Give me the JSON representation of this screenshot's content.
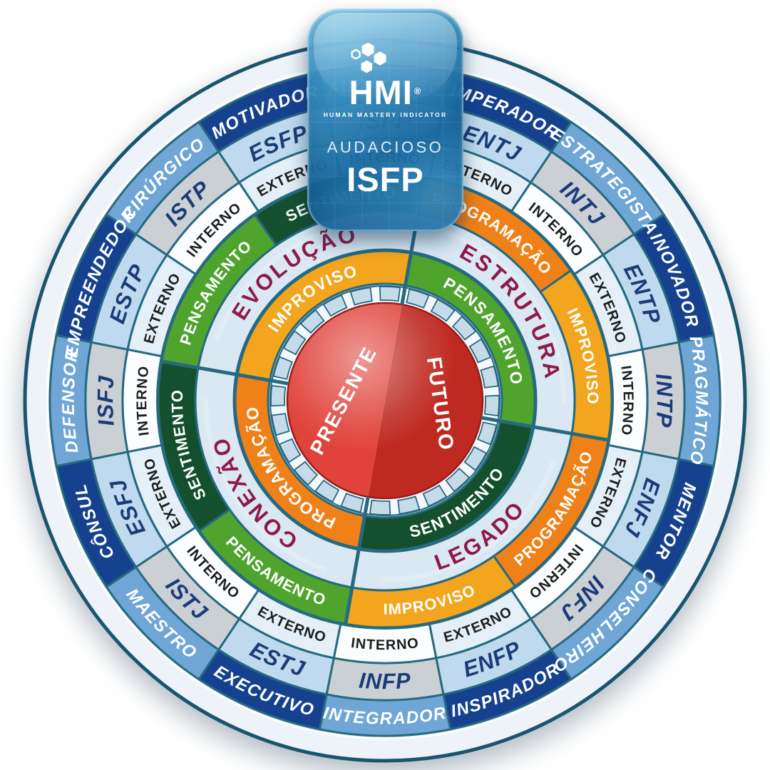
{
  "badge": {
    "logo": "HMI",
    "registered": "®",
    "logo_subtitle": "HUMAN MASTERY INDICATOR",
    "type_label": "AUDACIOSO",
    "type_code": "ISFP"
  },
  "wheel": {
    "center": {
      "left_label": "PRESENTE",
      "right_label": "FUTURO"
    },
    "inner_ring": [
      {
        "label": "PENSAMENTO",
        "quadrant": "top-right",
        "color_key": "light_green"
      },
      {
        "label": "SENTIMENTO",
        "quadrant": "bottom-right",
        "color_key": "dark_green"
      },
      {
        "label": "PROGRAMAÇÃO",
        "quadrant": "bottom-left",
        "color_key": "orange"
      },
      {
        "label": "IMPROVISO",
        "quadrant": "top-left",
        "color_key": "gold"
      }
    ],
    "quadrant_titles": [
      {
        "label": "ESTRUTURA",
        "quadrant": "top-right"
      },
      {
        "label": "LEGADO",
        "quadrant": "bottom-right"
      },
      {
        "label": "CONEXÃO",
        "quadrant": "bottom-left"
      },
      {
        "label": "EVOLUÇÃO",
        "quadrant": "top-left"
      }
    ],
    "middle_ring": [
      {
        "label": "PROGRAMAÇÃO",
        "color_key": "orange"
      },
      {
        "label": "IMPROVISO",
        "color_key": "gold"
      },
      {
        "label": "PROGRAMAÇÃO",
        "color_key": "orange"
      },
      {
        "label": "IMPROVISO",
        "color_key": "gold"
      },
      {
        "label": "PENSAMENTO",
        "color_key": "light_green"
      },
      {
        "label": "SENTIMENTO",
        "color_key": "dark_green"
      },
      {
        "label": "PENSAMENTO",
        "color_key": "light_green"
      },
      {
        "label": "SENTIMENTO",
        "color_key": "dark_green"
      }
    ],
    "types": [
      {
        "code": "ISFP",
        "descriptor": "AUDACIOSO",
        "attitude": "INTERNO",
        "covered_by_badge": true
      },
      {
        "code": "ENTJ",
        "descriptor": "IMPERADOR",
        "attitude": "EXTERNO"
      },
      {
        "code": "INTJ",
        "descriptor": "ESTRATEGISTA",
        "attitude": "INTERNO"
      },
      {
        "code": "ENTP",
        "descriptor": "INOVADOR",
        "attitude": "EXTERNO"
      },
      {
        "code": "INTP",
        "descriptor": "PRAGMÁTICO",
        "attitude": "INTERNO"
      },
      {
        "code": "ENFJ",
        "descriptor": "MENTOR",
        "attitude": "EXTERNO"
      },
      {
        "code": "INFJ",
        "descriptor": "CONSELHEIRO",
        "attitude": "INTERNO"
      },
      {
        "code": "ENFP",
        "descriptor": "INSPIRADOR",
        "attitude": "EXTERNO"
      },
      {
        "code": "INFP",
        "descriptor": "INTEGRADOR",
        "attitude": "INTERNO"
      },
      {
        "code": "ESTJ",
        "descriptor": "EXECUTIVO",
        "attitude": "EXTERNO"
      },
      {
        "code": "ISTJ",
        "descriptor": "MAESTRO",
        "attitude": "INTERNO"
      },
      {
        "code": "ESFJ",
        "descriptor": "CÔNSUL",
        "attitude": "EXTERNO"
      },
      {
        "code": "ISFJ",
        "descriptor": "DEFENSOR",
        "attitude": "INTERNO"
      },
      {
        "code": "ESTP",
        "descriptor": "EMPREENDEDOR",
        "attitude": "EXTERNO"
      },
      {
        "code": "ISTP",
        "descriptor": "CIRÚRGICO",
        "attitude": "INTERNO"
      },
      {
        "code": "ESFP",
        "descriptor": "MOTIVADOR",
        "attitude": "EXTERNO"
      }
    ],
    "colors": {
      "navy": "#16418F",
      "steel": "#6FA6D6",
      "type_external_bg": "#BFDAEE",
      "type_internal_bg": "#CBD0D5",
      "attitude_external_bg": "#E4EFF7",
      "attitude_internal_bg": "#FBFDFF",
      "orange": "#F08119",
      "gold": "#F2A51D",
      "light_green": "#4FA42E",
      "dark_green": "#14502E",
      "title_ring_bg": "#D9E8F3",
      "title_text": "#8E1A47",
      "red_left": "#E0433B",
      "red_right": "#BE2A22",
      "teal_border": "#266A80",
      "outer_stroke": "#1A5570",
      "rim": "#EDF3F8",
      "inner_bg": "#E9F1F8",
      "tick_cell": "#C6DBEA",
      "tick_bg": "#F3F8FC",
      "type_text": "#1A3C78",
      "attitude_text": "#1D1D1D"
    }
  }
}
